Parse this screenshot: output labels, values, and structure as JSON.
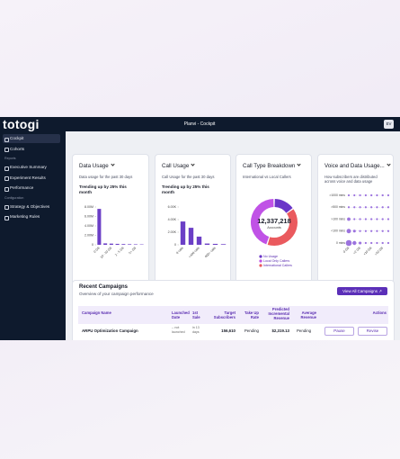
{
  "header": {
    "logo": "totogi",
    "title": "Planvi - Cockpit",
    "avatar": "EV"
  },
  "sidebar": {
    "items": [
      "Cockpit",
      "Cohorts"
    ],
    "sections": [
      {
        "title": "Reports",
        "items": [
          "Executive Summary",
          "Experiment Results",
          "Performance"
        ]
      },
      {
        "title": "Configuration",
        "items": [
          "Strategy & Objectives",
          "Marketing Rules"
        ]
      }
    ]
  },
  "cards": [
    {
      "title": "Data Usage",
      "subtitle": "Data usage for the past 30 days",
      "trend": "Trending up by 25% this month",
      "chart": {
        "type": "bar",
        "color": "#6b3fc6",
        "categories": [
          "0 GB",
          null,
          "10 - 20 GB",
          null,
          "2 - 5 GB",
          null,
          "5+ GB",
          null
        ],
        "values": [
          7600000,
          300000,
          250000,
          200000,
          150000,
          120000,
          100000,
          80000
        ],
        "ylim": [
          0,
          8000000
        ],
        "yticks": [
          0,
          {
            "value": 2000000,
            "label": "2.00M"
          },
          {
            "value": 4000000,
            "label": "4.00M"
          },
          {
            "value": 6000000,
            "label": "6.00M"
          },
          {
            "value": 8000000,
            "label": "8.00M"
          }
        ]
      }
    },
    {
      "title": "Call Usage",
      "subtitle": "Call Usage for the past 30 days",
      "trend": "Trending up by 25% this month",
      "chart": {
        "type": "bar",
        "color": "#6b3fc6",
        "categories": [
          "0 calls",
          null,
          "<400 calls",
          null,
          "800+ calls",
          null
        ],
        "values": [
          3700,
          2700,
          1300,
          200,
          150,
          100
        ],
        "ylim": [
          0,
          6000
        ],
        "yticks": [
          0,
          {
            "value": 2000,
            "label": "2.00K"
          },
          {
            "value": 4000,
            "label": "4.00K"
          },
          {
            "value": 6000,
            "label": "6.00K"
          }
        ]
      }
    },
    {
      "title": "Call Type Breakdown",
      "subtitle": "International vs Local Callers",
      "chart": {
        "type": "donut",
        "center_value": "12,337,218",
        "center_label": "Accounts",
        "series": [
          {
            "name": "No Usage",
            "color": "#6a35c8",
            "value": 15
          },
          {
            "name": "International Callers",
            "color": "#ea5a5e",
            "value": 40
          },
          {
            "name": "Local Only Callers",
            "color": "#c052e6",
            "value": 45
          }
        ]
      }
    },
    {
      "title": "Voice and Data Usage...",
      "subtitle": "How subscribers are distributed across voice and data usage",
      "chart": {
        "type": "bubble",
        "color": "#8b5bd8",
        "rows": [
          ">1000 mins",
          ">500 mins",
          ">100 mins",
          "<100 mins",
          "0 mins"
        ],
        "columns": [
          "0 GB",
          null,
          "<2 GB",
          null,
          "<10 GB",
          null,
          ">10 GB",
          null
        ],
        "sizes": [
          [
            1,
            1,
            1,
            1,
            1,
            1,
            1,
            1
          ],
          [
            1,
            1,
            1,
            1,
            1,
            1,
            1,
            1
          ],
          [
            3,
            1,
            1,
            1,
            1,
            1,
            1,
            1
          ],
          [
            5,
            2,
            1,
            1,
            1,
            1,
            1,
            1
          ],
          [
            9,
            4,
            2,
            1,
            1,
            1,
            1,
            1
          ]
        ]
      }
    }
  ],
  "campaigns": {
    "title": "Recent Campaigns",
    "subtitle": "Overview of your campaign performance",
    "button": "View All Campaigns",
    "table": {
      "columns": [
        "Campaign Name",
        "Launched Date",
        "1st Sale",
        "Target Subscribers",
        "Take Up Rate",
        "Predicted Incremental Revenue",
        "Average Revenue",
        "Actions"
      ],
      "rows": [
        {
          "cells": [
            "ARPU Optimization Campaign",
            "-- not launched",
            "in 13 days",
            "156,610",
            "Pending",
            "$2,319.13",
            "Pending"
          ],
          "actions": [
            "Pause",
            "Revise"
          ]
        }
      ]
    }
  }
}
